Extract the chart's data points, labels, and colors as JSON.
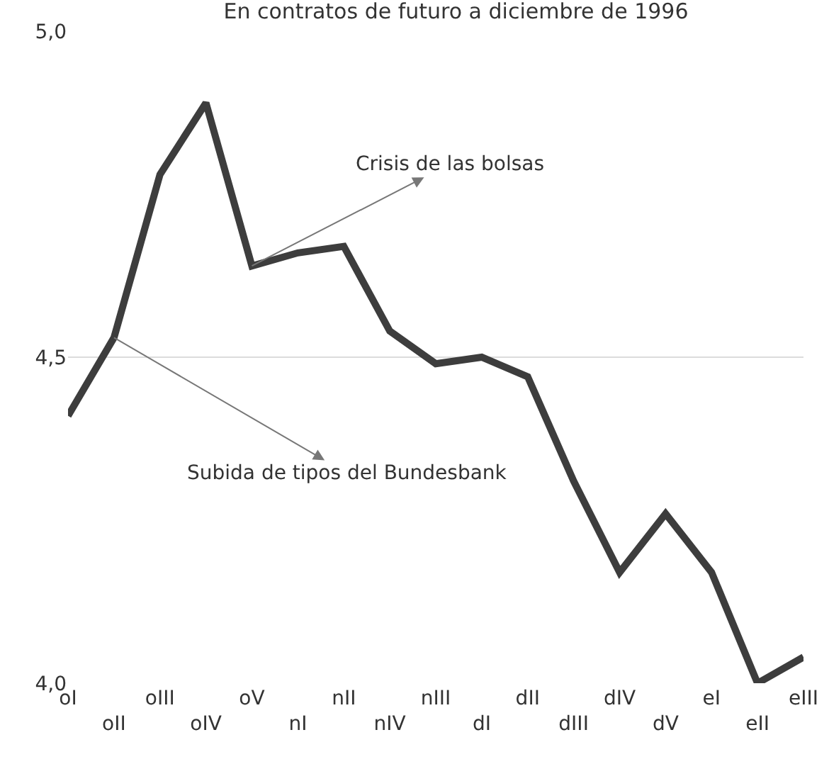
{
  "chart_data": {
    "type": "line",
    "title": "En contratos de futuro a diciembre de 1996",
    "categories": [
      "oI",
      "oII",
      "oIII",
      "oIV",
      "oV",
      "nI",
      "nII",
      "nIV",
      "nIII",
      "dI",
      "dII",
      "dIII",
      "dIV",
      "dV",
      "eI",
      "eII",
      "eIII"
    ],
    "series": [
      {
        "color": "#3d3d3d",
        "values": [
          4.41,
          4.53,
          4.78,
          4.89,
          4.64,
          4.66,
          4.67,
          4.54,
          4.49,
          4.5,
          4.47,
          4.31,
          4.17,
          4.26,
          4.17,
          4.0,
          4.04
        ]
      }
    ],
    "ylim": [
      4.0,
      5.0
    ],
    "yticks": [
      {
        "value": 4.0,
        "label": "4,0"
      },
      {
        "value": 4.5,
        "label": "4,5"
      },
      {
        "value": 5.0,
        "label": "5,0"
      }
    ],
    "grid": "y",
    "marker": "none",
    "line_style": "solid",
    "annotations": [
      {
        "text": "Crisis de las bolsas",
        "x": "oV",
        "y": 4.64
      },
      {
        "text": "Subida de tipos del Bundesbank",
        "x": "oII",
        "y": 4.53
      }
    ]
  }
}
